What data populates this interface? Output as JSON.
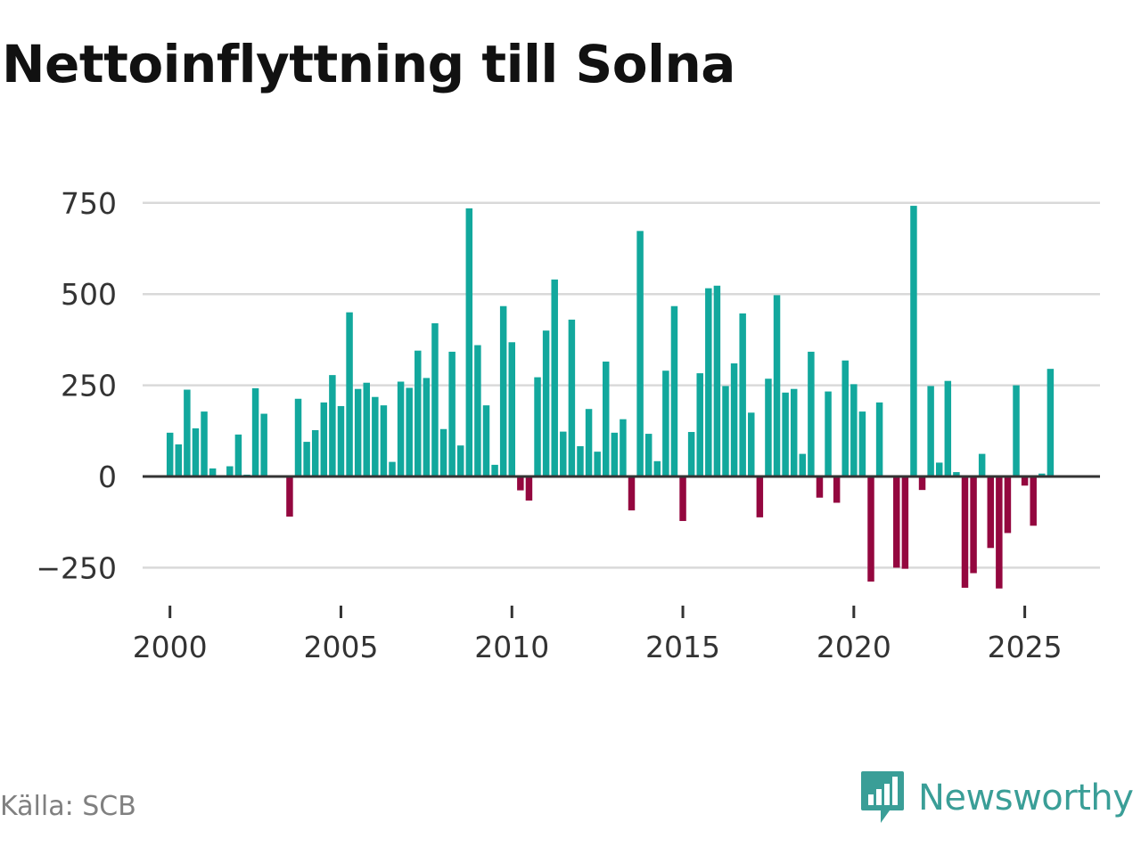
{
  "title": "Nettoinflyttning till Solna",
  "source": "Källa: SCB",
  "brand": "Newsworthy",
  "colors": {
    "positive": "#12a89d",
    "negative": "#94073f",
    "grid": "#d9d9d9",
    "zero": "#333333",
    "brand": "#3a9e97"
  },
  "chart_data": {
    "type": "bar",
    "title": "Nettoinflyttning till Solna",
    "xlabel": "",
    "ylabel": "",
    "ylim": [
      -300,
      750
    ],
    "xlim": [
      1999.2,
      2027.2
    ],
    "grid": true,
    "y_ticks": [
      {
        "value": 750,
        "label": "750"
      },
      {
        "value": 500,
        "label": "500"
      },
      {
        "value": 250,
        "label": "250"
      },
      {
        "value": 0,
        "label": "0"
      },
      {
        "value": -250,
        "label": "−250"
      }
    ],
    "x_ticks": [
      {
        "value": 2000,
        "label": "2000"
      },
      {
        "value": 2005,
        "label": "2005"
      },
      {
        "value": 2010,
        "label": "2010"
      },
      {
        "value": 2015,
        "label": "2015"
      },
      {
        "value": 2020,
        "label": "2020"
      },
      {
        "value": 2025,
        "label": "2025"
      }
    ],
    "x_start": 2000,
    "x_step": 0.25,
    "values": [
      120,
      88,
      238,
      132,
      178,
      22,
      0,
      28,
      115,
      5,
      242,
      172,
      0,
      0,
      -110,
      213,
      95,
      127,
      203,
      278,
      193,
      450,
      240,
      257,
      218,
      195,
      40,
      260,
      243,
      345,
      270,
      420,
      130,
      342,
      85,
      735,
      360,
      195,
      32,
      467,
      368,
      -38,
      -66,
      272,
      400,
      540,
      123,
      430,
      83,
      185,
      68,
      315,
      120,
      157,
      -93,
      673,
      117,
      42,
      290,
      467,
      -122,
      122,
      283,
      516,
      523,
      248,
      310,
      447,
      175,
      -112,
      268,
      497,
      230,
      240,
      62,
      342,
      -58,
      233,
      -72,
      318,
      253,
      178,
      -288,
      203,
      0,
      -250,
      -253,
      742,
      -37,
      248,
      38,
      262,
      12,
      -305,
      -265,
      62,
      -196,
      -307,
      -155,
      250,
      -25,
      -135,
      8,
      295
    ]
  }
}
